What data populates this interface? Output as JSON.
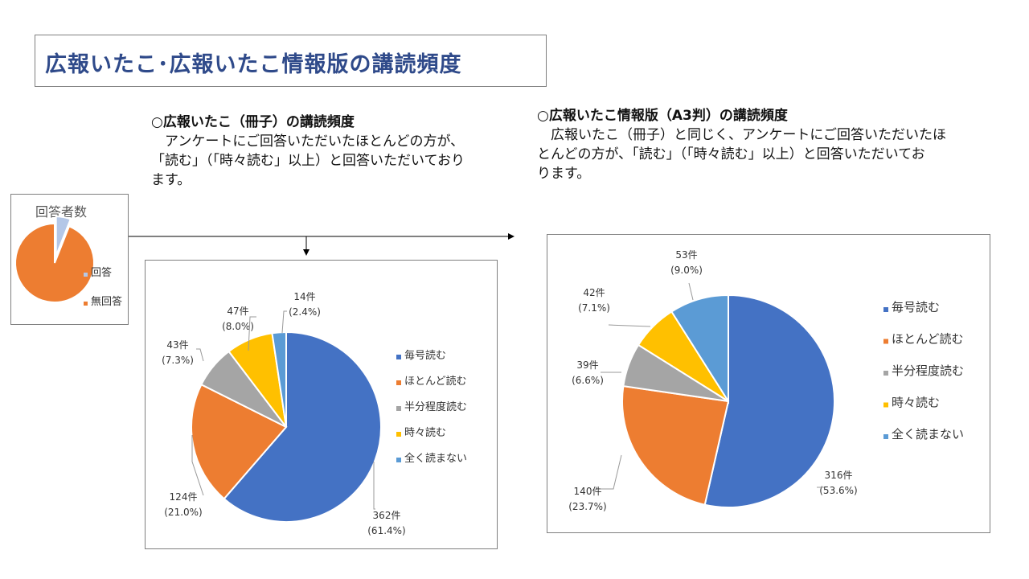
{
  "title": "広報いたこ･広報いたこ情報版の講読頻度",
  "section_left": {
    "heading": "○広報いたこ（冊子）の講読頻度",
    "body_lines": [
      "　アンケートにご回答いただいたほとんどの方が、",
      "「読む」（「時々読む」以上）と回答いただいており",
      "ます。"
    ]
  },
  "section_right": {
    "heading": "○広報いたこ情報版（A3判）の講読頻度",
    "body_lines": [
      "　広報いたこ（冊子）と同じく、アンケートにご回答いただいたほ",
      "とんどの方が、「読む」（「時々読む」以上）と回答いただいてお",
      "ります。"
    ]
  },
  "colors": {
    "blue": "#4472c4",
    "orange": "#ed7d31",
    "gray": "#a5a5a5",
    "yellow": "#ffc000",
    "lightblue": "#5b9bd5",
    "respond": "#b4c7e7"
  },
  "chart_data": [
    {
      "type": "pie",
      "title": "回答者数",
      "categories": [
        "回答",
        "無回答"
      ],
      "values": [
        6,
        94
      ],
      "colors": [
        "#b4c7e7",
        "#ed7d31"
      ],
      "exploded": [
        0
      ],
      "legend": "right"
    },
    {
      "type": "pie",
      "categories": [
        "毎号読む",
        "ほとんど読む",
        "半分程度読む",
        "時々読む",
        "全く読まない"
      ],
      "values": [
        362,
        124,
        43,
        47,
        14
      ],
      "labels": [
        {
          "count": "362件",
          "pct": "(61.4%)"
        },
        {
          "count": "124件",
          "pct": "(21.0%)"
        },
        {
          "count": "43件",
          "pct": "(7.3%)"
        },
        {
          "count": "47件",
          "pct": "(8.0%)"
        },
        {
          "count": "14件",
          "pct": "(2.4%)"
        }
      ],
      "colors": [
        "#4472c4",
        "#ed7d31",
        "#a5a5a5",
        "#ffc000",
        "#5b9bd5"
      ],
      "legend": "right"
    },
    {
      "type": "pie",
      "categories": [
        "毎号読む",
        "ほとんど読む",
        "半分程度読む",
        "時々読む",
        "全く読まない"
      ],
      "values": [
        316,
        140,
        39,
        42,
        53
      ],
      "labels": [
        {
          "count": "316件",
          "pct": "(53.6%)"
        },
        {
          "count": "140件",
          "pct": "(23.7%)"
        },
        {
          "count": "39件",
          "pct": "(6.6%)"
        },
        {
          "count": "42件",
          "pct": "(7.1%)"
        },
        {
          "count": "53件",
          "pct": "(9.0%)"
        }
      ],
      "colors": [
        "#4472c4",
        "#ed7d31",
        "#a5a5a5",
        "#ffc000",
        "#5b9bd5"
      ],
      "legend": "right"
    }
  ]
}
